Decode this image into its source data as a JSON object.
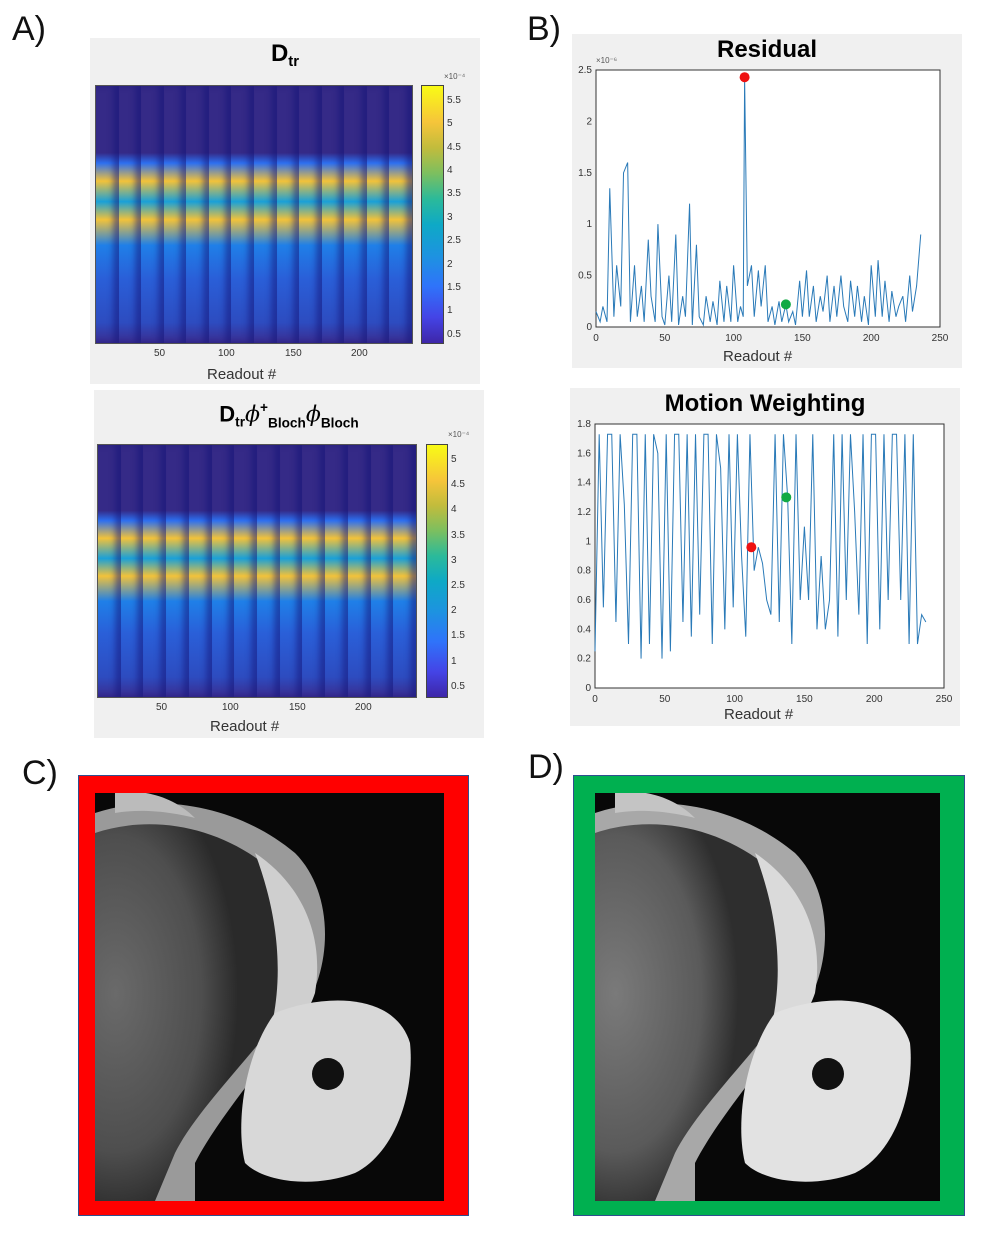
{
  "panels": {
    "a": "A)",
    "b": "B)",
    "c": "C)",
    "d": "D)"
  },
  "heatmaps": [
    {
      "title_main": "D",
      "title_sub": "tr",
      "colorbar_ticks": [
        "5.5",
        "5",
        "4.5",
        "4",
        "3.5",
        "3",
        "2.5",
        "2",
        "1.5",
        "1",
        "0.5"
      ],
      "colorbar_scale": "×10⁻⁴",
      "x_ticks": [
        "50",
        "100",
        "150",
        "200"
      ],
      "xlabel": "Readout #"
    },
    {
      "title_main": "D",
      "title_sub": "tr",
      "title_phi1": "ϕ",
      "title_phi1_sup": "+",
      "title_phi1_sub": "Bloch",
      "title_phi2": "ϕ",
      "title_phi2_sub": "Bloch",
      "colorbar_ticks": [
        "5",
        "4.5",
        "4",
        "3.5",
        "3",
        "2.5",
        "2",
        "1.5",
        "1",
        "0.5"
      ],
      "colorbar_scale": "×10⁻⁴",
      "x_ticks": [
        "50",
        "100",
        "150",
        "200"
      ],
      "xlabel": "Readout #"
    }
  ],
  "chart_data": [
    {
      "type": "line",
      "title": "Residual",
      "xlabel": "Readout #",
      "ylabel": "",
      "scale": "×10⁻⁶",
      "xlim": [
        0,
        250
      ],
      "ylim": [
        0,
        2.5
      ],
      "x_ticks": [
        "0",
        "50",
        "100",
        "150",
        "200",
        "250"
      ],
      "y_ticks": [
        "0",
        "0.5",
        "1",
        "1.5",
        "2",
        "2.5"
      ],
      "x": [
        0,
        3,
        5,
        8,
        10,
        13,
        15,
        18,
        20,
        23,
        25,
        28,
        30,
        33,
        35,
        38,
        40,
        43,
        45,
        48,
        50,
        53,
        55,
        58,
        60,
        63,
        65,
        68,
        70,
        73,
        75,
        78,
        80,
        83,
        85,
        88,
        90,
        93,
        95,
        98,
        100,
        103,
        105,
        107,
        108,
        110,
        113,
        115,
        118,
        120,
        123,
        125,
        128,
        130,
        133,
        135,
        138,
        140,
        143,
        145,
        148,
        150,
        153,
        155,
        158,
        160,
        163,
        165,
        168,
        170,
        173,
        175,
        178,
        180,
        183,
        185,
        188,
        190,
        193,
        195,
        198,
        200,
        203,
        205,
        208,
        210,
        213,
        215,
        218,
        220,
        223,
        225,
        228,
        230,
        233,
        236
      ],
      "values": [
        0.15,
        0.05,
        0.2,
        0.05,
        1.35,
        0.1,
        0.6,
        0.2,
        1.5,
        1.6,
        0.05,
        0.6,
        0.1,
        0.4,
        0.05,
        0.85,
        0.3,
        0.05,
        1.0,
        0.1,
        0.02,
        0.5,
        0.05,
        0.9,
        0.02,
        0.3,
        0.1,
        1.2,
        0.02,
        0.8,
        0.1,
        0.02,
        0.3,
        0.05,
        0.25,
        0.02,
        0.45,
        0.05,
        0.4,
        0.05,
        0.6,
        0.05,
        0.2,
        0.1,
        2.43,
        0.4,
        0.6,
        0.1,
        0.55,
        0.2,
        0.6,
        0.05,
        0.2,
        0.02,
        0.25,
        0.05,
        0.22,
        0.05,
        0.15,
        0.02,
        0.45,
        0.1,
        0.55,
        0.1,
        0.4,
        0.05,
        0.3,
        0.15,
        0.5,
        0.05,
        0.4,
        0.1,
        0.5,
        0.2,
        0.05,
        0.45,
        0.1,
        0.4,
        0.05,
        0.3,
        0.02,
        0.6,
        0.1,
        0.65,
        0.1,
        0.45,
        0.05,
        0.35,
        0.1,
        0.2,
        0.3,
        0.05,
        0.5,
        0.15,
        0.4,
        0.9
      ],
      "markers": [
        {
          "x": 108,
          "y": 2.43,
          "color": "#ee1111"
        },
        {
          "x": 138,
          "y": 0.22,
          "color": "#11aa44"
        }
      ]
    },
    {
      "type": "line",
      "title": "Motion Weighting",
      "xlabel": "Readout #",
      "ylabel": "",
      "xlim": [
        0,
        250
      ],
      "ylim": [
        0,
        1.8
      ],
      "x_ticks": [
        "0",
        "50",
        "100",
        "150",
        "200",
        "250"
      ],
      "y_ticks": [
        "0",
        "0.2",
        "0.4",
        "0.6",
        "0.8",
        "1",
        "1.2",
        "1.4",
        "1.6",
        "1.8"
      ],
      "x": [
        0,
        3,
        6,
        9,
        12,
        15,
        18,
        21,
        24,
        27,
        30,
        33,
        36,
        39,
        42,
        45,
        48,
        51,
        54,
        57,
        60,
        63,
        66,
        69,
        72,
        75,
        78,
        81,
        84,
        87,
        90,
        93,
        96,
        99,
        102,
        105,
        108,
        111,
        114,
        117,
        120,
        123,
        126,
        129,
        132,
        135,
        138,
        141,
        144,
        147,
        150,
        153,
        156,
        159,
        162,
        165,
        168,
        171,
        174,
        177,
        180,
        183,
        186,
        189,
        192,
        195,
        198,
        201,
        204,
        207,
        210,
        213,
        216,
        219,
        222,
        225,
        228,
        231,
        234,
        237
      ],
      "values": [
        0.25,
        1.73,
        0.55,
        1.73,
        1.73,
        0.45,
        1.73,
        1.25,
        0.3,
        1.73,
        1.73,
        0.2,
        1.73,
        0.3,
        1.73,
        1.6,
        0.2,
        1.73,
        0.25,
        1.73,
        1.73,
        0.45,
        1.73,
        0.35,
        1.73,
        0.5,
        1.73,
        1.73,
        0.3,
        1.73,
        1.5,
        0.4,
        1.73,
        0.55,
        1.73,
        0.9,
        0.35,
        1.73,
        0.8,
        0.96,
        0.85,
        0.6,
        0.5,
        1.73,
        0.45,
        1.73,
        1.3,
        0.3,
        1.73,
        0.6,
        1.1,
        0.6,
        1.73,
        0.4,
        0.9,
        0.4,
        0.6,
        1.73,
        0.35,
        1.73,
        0.6,
        1.73,
        1.2,
        0.5,
        1.73,
        0.3,
        1.73,
        1.73,
        0.4,
        1.73,
        0.6,
        1.73,
        1.73,
        0.6,
        1.73,
        0.3,
        1.73,
        0.3,
        0.5,
        0.45
      ],
      "markers": [
        {
          "x": 112,
          "y": 0.96,
          "color": "#ee1111"
        },
        {
          "x": 137,
          "y": 1.3,
          "color": "#11aa44"
        }
      ]
    }
  ],
  "colors": {
    "frame_c": "#ff0000",
    "frame_d": "#00b050",
    "line": "#2a7ab8",
    "colorbar_top": "#f9fb15",
    "colorbar_bottom": "#3e26a8"
  }
}
